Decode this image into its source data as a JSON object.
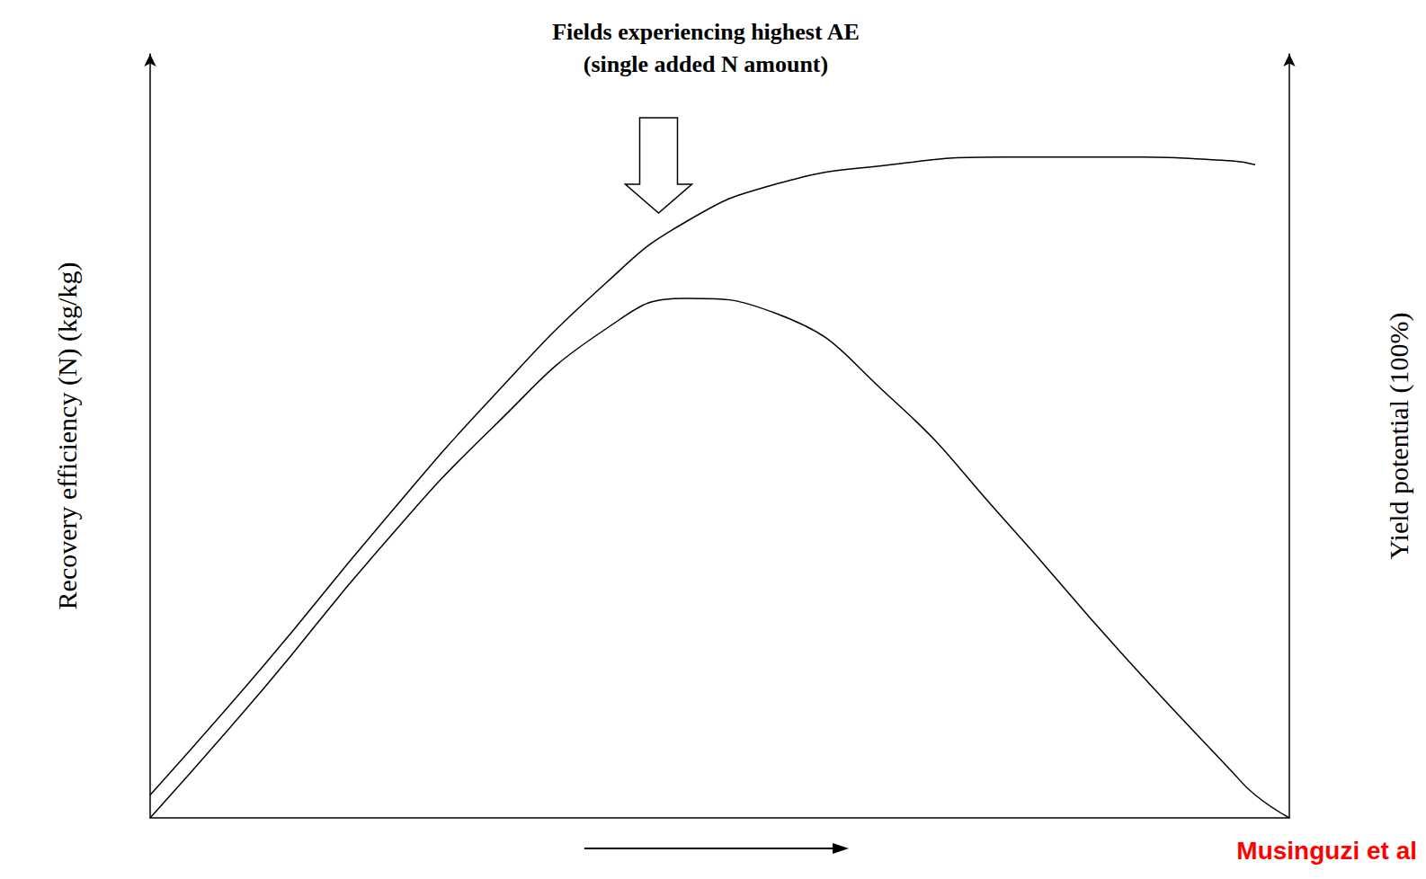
{
  "chart_data": {
    "type": "line",
    "title": [
      "Fields experiencing highest AE",
      "(single added N amount)"
    ],
    "x": [
      0,
      10,
      20,
      30,
      40,
      47,
      55,
      65,
      75,
      85,
      95,
      97,
      100
    ],
    "xlim": [
      0,
      100
    ],
    "ylim": [
      0,
      100
    ],
    "y2lim": [
      0,
      100
    ],
    "y_label": "Recovery efficiency (N) (kg/kg)",
    "y2_label": "Yield potential (100%)",
    "source": "Musinguzi et al",
    "tick_labels": false,
    "grid": false,
    "series": [
      {
        "color": "#000000",
        "line_style": "solid",
        "values": [
          0,
          17,
          35,
          51,
          64,
          68,
          66,
          55,
          39,
          22,
          6,
          3,
          0
        ]
      },
      {
        "color": "#000000",
        "line_style": "solid",
        "axis": "y2",
        "values": [
          3,
          20,
          38,
          55,
          70,
          78,
          83,
          85.5,
          86.5,
          86.5,
          86,
          85.5,
          null
        ]
      }
    ]
  }
}
